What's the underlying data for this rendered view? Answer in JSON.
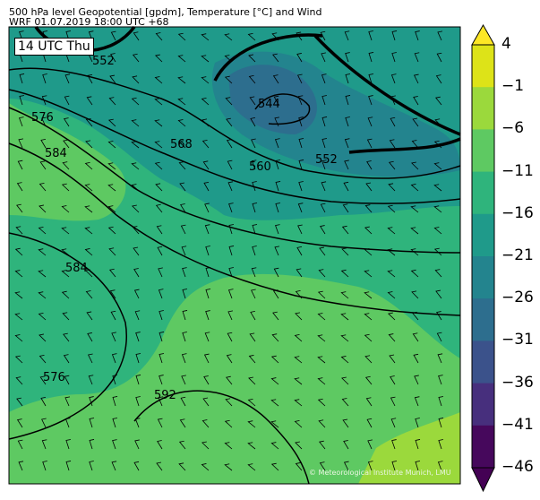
{
  "title_line1": "500 hPa level Geopotential [gpdm], Temperature [°C] and Wind",
  "title_line2": "WRF 01.07.2019 18:00 UTC +68",
  "time_label": "14 UTC Thu",
  "copyright": "© Meteorological Institute Munich, LMU",
  "contour_labels": [
    "552",
    "544",
    "552",
    "560",
    "568",
    "576",
    "584",
    "584",
    "576",
    "592"
  ],
  "colorbar": {
    "ticks": [
      "4",
      "−1",
      "−6",
      "−11",
      "−16",
      "−21",
      "−26",
      "−31",
      "−36",
      "−41",
      "−46"
    ],
    "colors": [
      "#fde725",
      "#dde318",
      "#9bd93c",
      "#5ec962",
      "#2fb47c",
      "#1f9a8a",
      "#23848e",
      "#2d6e8e",
      "#3b528b",
      "#472f7d",
      "#46085c",
      "#440154"
    ]
  }
}
